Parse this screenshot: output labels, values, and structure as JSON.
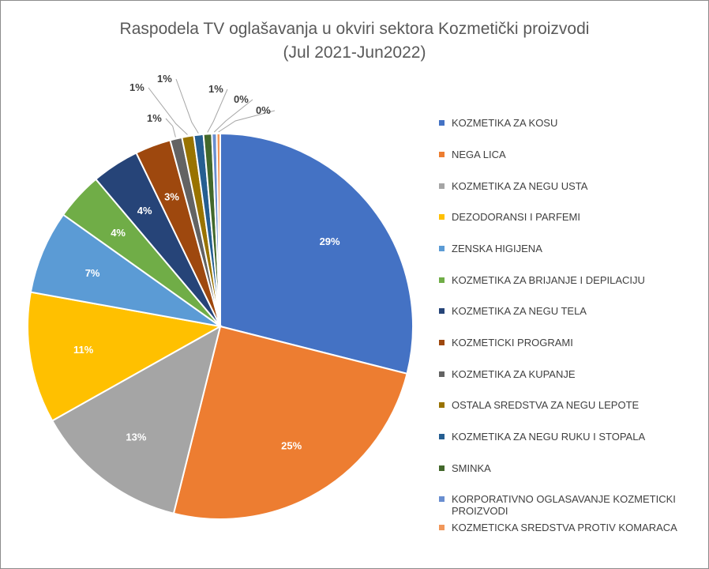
{
  "chart_data": {
    "type": "pie",
    "title": "Raspodela TV oglašavanja u okviri sektora Kozmetički proizvodi",
    "subtitle": "(Jul 2021-Jun2022)",
    "legend_position": "right",
    "slices": [
      {
        "label": "KOZMETIKA ZA KOSU",
        "value": 29,
        "display": "29%",
        "color": "#4472C4"
      },
      {
        "label": "NEGA LICA",
        "value": 25,
        "display": "25%",
        "color": "#ED7D31"
      },
      {
        "label": "KOZMETIKA ZA NEGU USTA",
        "value": 13,
        "display": "13%",
        "color": "#A5A5A5"
      },
      {
        "label": "DEZODORANSI I PARFEMI",
        "value": 11,
        "display": "11%",
        "color": "#FFC000"
      },
      {
        "label": "ZENSKA HIGIJENA",
        "value": 7,
        "display": "7%",
        "color": "#5B9BD5"
      },
      {
        "label": "KOZMETIKA ZA BRIJANJE I DEPILACIJU",
        "value": 4,
        "display": "4%",
        "color": "#70AD47"
      },
      {
        "label": "KOZMETIKA ZA NEGU TELA",
        "value": 4,
        "display": "4%",
        "color": "#264478"
      },
      {
        "label": "KOZMETICKI PROGRAMI",
        "value": 3,
        "display": "3%",
        "color": "#9E480E"
      },
      {
        "label": "KOZMETIKA ZA KUPANJE",
        "value": 1,
        "display": "1%",
        "color": "#636363"
      },
      {
        "label": "OSTALA SREDSTVA ZA NEGU LEPOTE",
        "value": 1,
        "display": "1%",
        "color": "#997300"
      },
      {
        "label": "KOZMETIKA ZA NEGU RUKU I STOPALA",
        "value": 0.8,
        "display": "1%",
        "color": "#255E91"
      },
      {
        "label": "SMINKA",
        "value": 0.7,
        "display": "1%",
        "color": "#43682B"
      },
      {
        "label": "KORPORATIVNO OGLASAVANJE KOZMETICKI PROIZVODI",
        "value": 0.4,
        "display": "0%",
        "color": "#698ED0"
      },
      {
        "label": "KOZMETICKA SREDSTVA PROTIV KOMARACA",
        "value": 0.3,
        "display": "0%",
        "color": "#F1975A"
      }
    ]
  }
}
